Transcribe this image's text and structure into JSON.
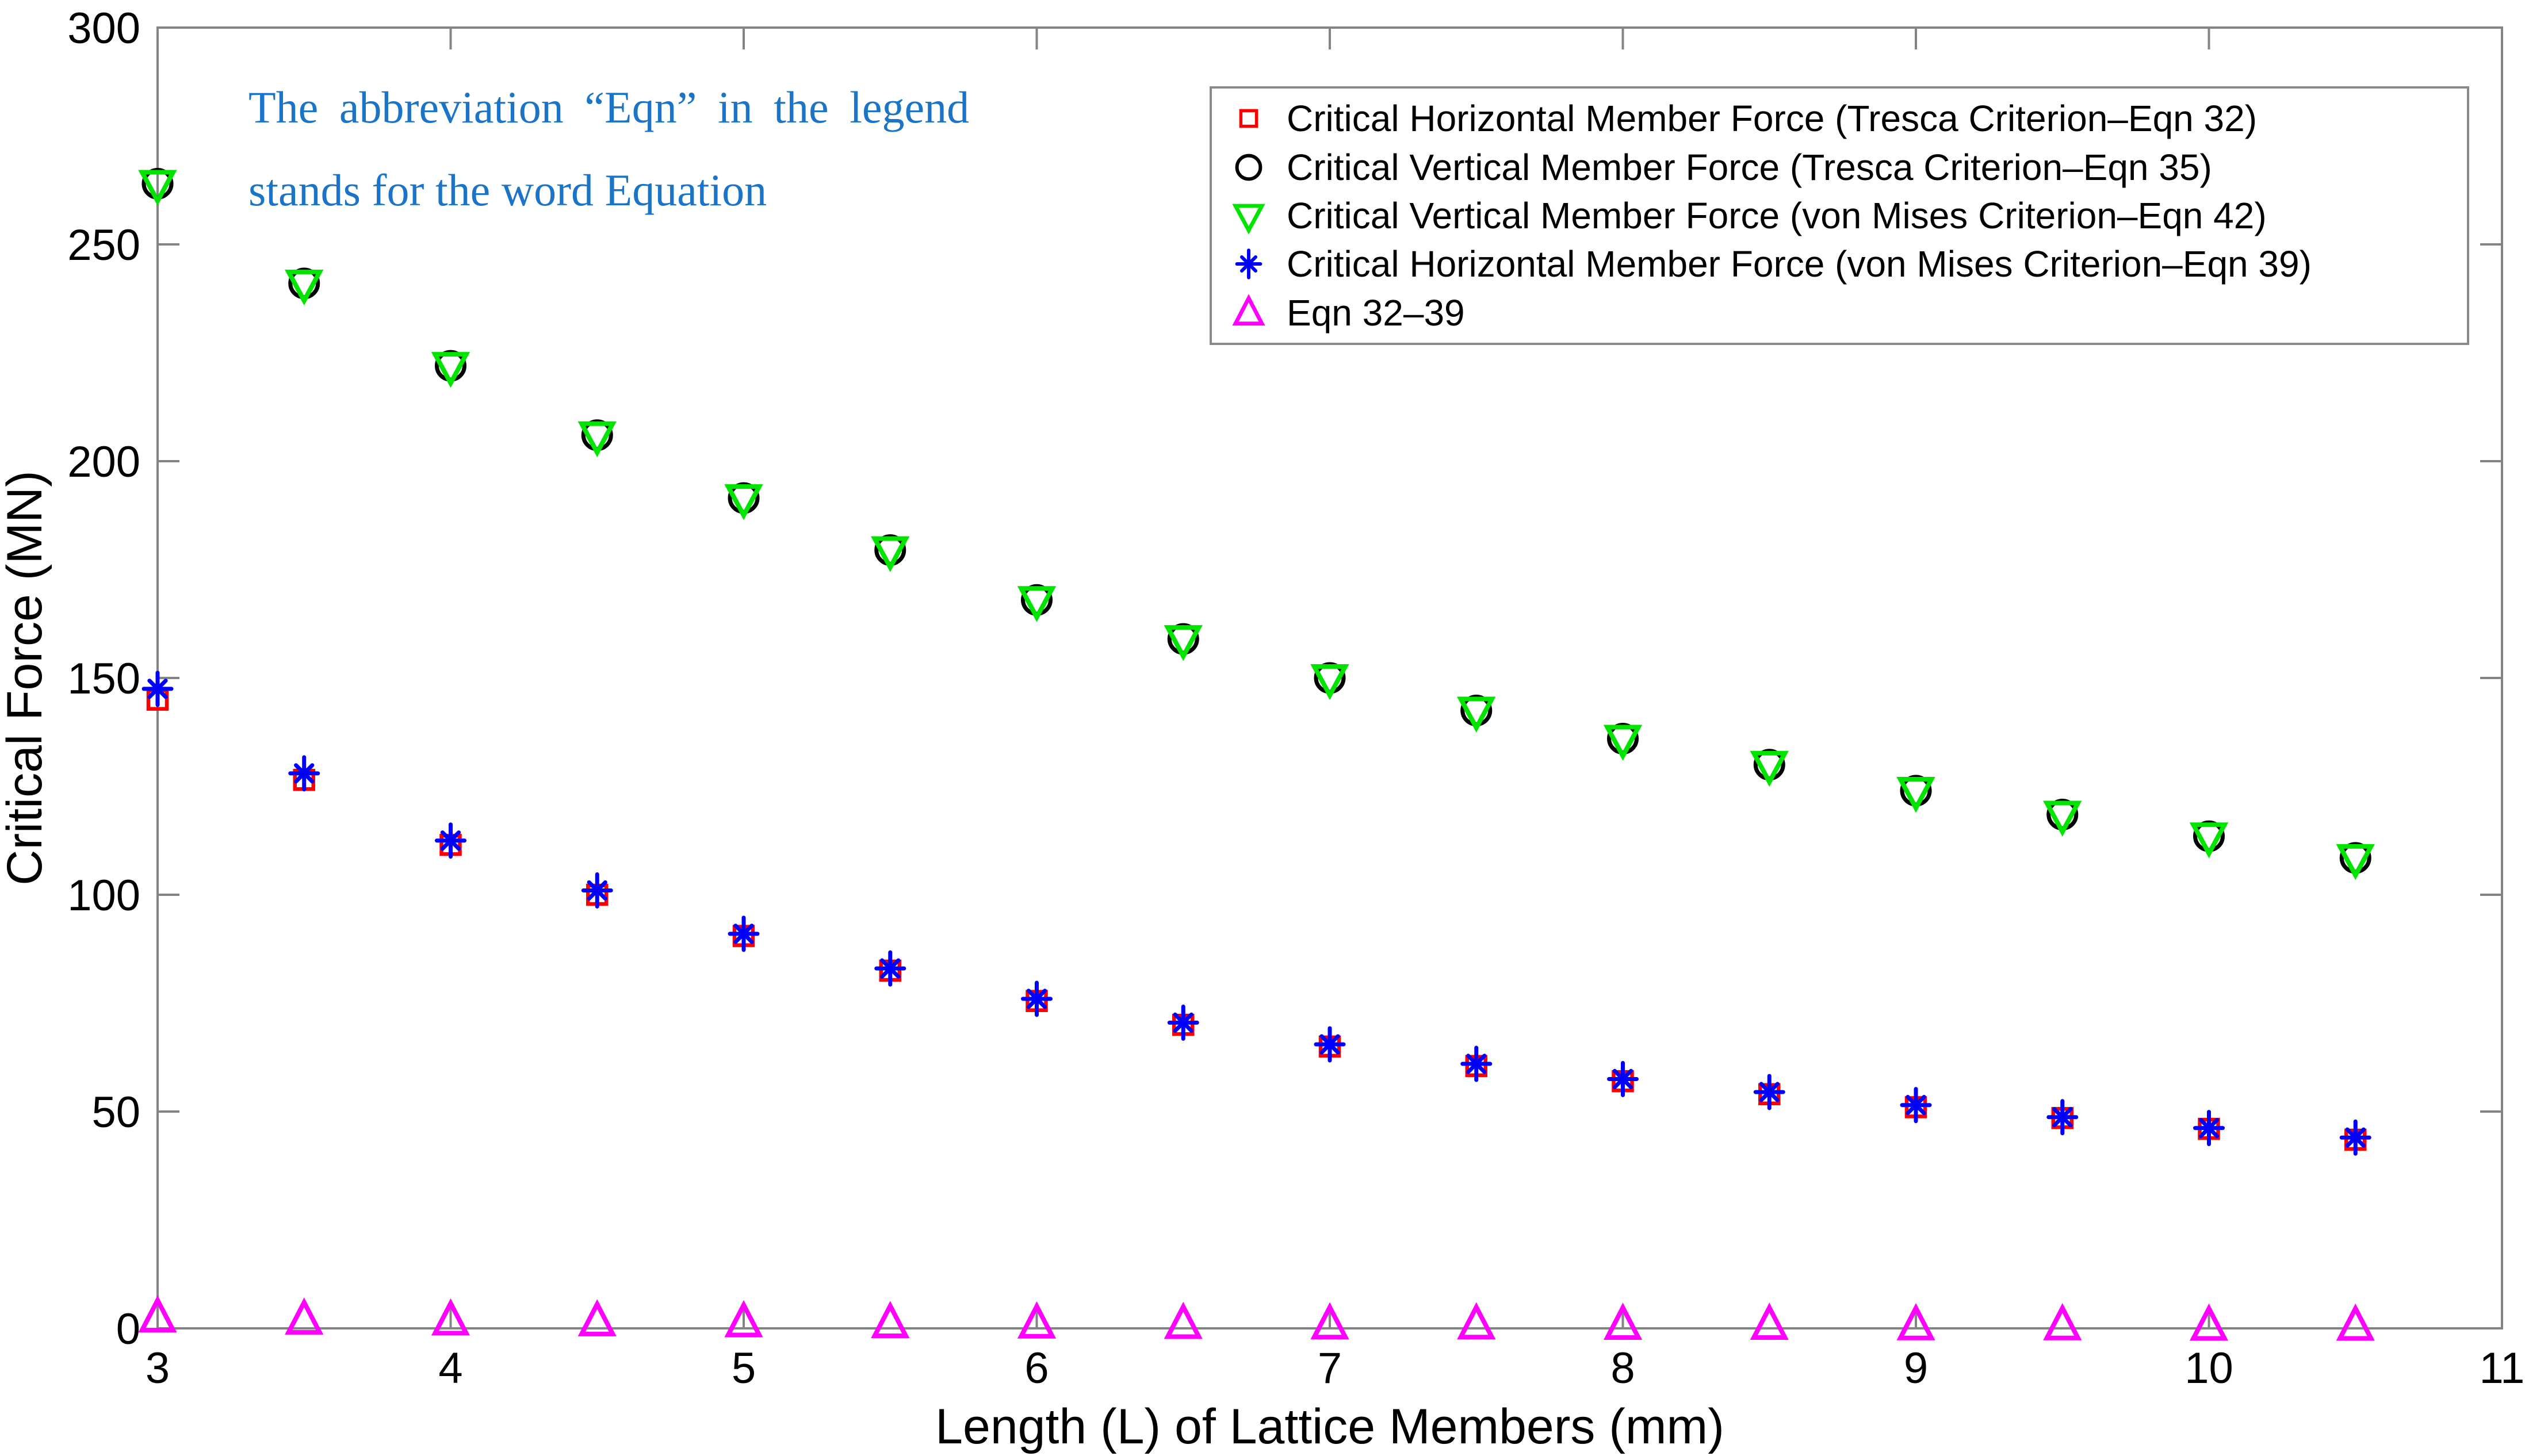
{
  "annotation": {
    "line1": "The abbreviation “Eqn” in the legend",
    "line2": "stands for the word Equation",
    "color": "#1B74C5"
  },
  "chart_data": {
    "type": "scatter",
    "title": "",
    "xlabel": "Length (L) of Lattice Members (mm)",
    "ylabel": "Critical Force (MN)",
    "xlim": [
      3,
      11
    ],
    "ylim": [
      0,
      300
    ],
    "xticks": [
      3,
      4,
      5,
      6,
      7,
      8,
      9,
      10,
      11
    ],
    "yticks": [
      0,
      50,
      100,
      150,
      200,
      250,
      300
    ],
    "grid": false,
    "legend_position": "upper right",
    "axis_color": "#848484",
    "tick_label_color": "#000000",
    "x": [
      3,
      3.5,
      4,
      4.5,
      5,
      5.5,
      6,
      6.5,
      7,
      7.5,
      8,
      8.5,
      9,
      9.5,
      10,
      10.5
    ],
    "series": [
      {
        "name": "Critical Horizontal Member Force (Tresca Criterion–Eqn 32)",
        "marker": "square",
        "color": "#FF0000",
        "values": [
          145,
          126.5,
          111.5,
          100,
          90.5,
          82.5,
          75.5,
          70,
          65,
          60.5,
          57,
          54,
          51,
          48.5,
          46,
          43.5
        ]
      },
      {
        "name": "Critical Vertical Member Force (Tresca Criterion–Eqn 35)",
        "marker": "circle",
        "color": "#000000",
        "values": [
          264,
          241,
          222,
          206,
          191.5,
          179.5,
          168,
          159,
          150,
          142.5,
          136,
          130,
          124,
          118.5,
          113.5,
          108.5
        ]
      },
      {
        "name": "Critical Vertical Member Force (von Mises Criterion–Eqn 42)",
        "marker": "triangle-down",
        "color": "#00E400",
        "values": [
          264,
          241,
          222,
          206,
          191.5,
          179.5,
          168,
          159,
          150,
          142.5,
          136,
          130,
          124,
          118.5,
          113.5,
          108.5
        ]
      },
      {
        "name": "Critical Horizontal Member Force (von Mises Criterion–Eqn 39)",
        "marker": "asterisk",
        "color": "#0000FF",
        "values": [
          147.5,
          128,
          112.5,
          101,
          91,
          83,
          76,
          70.5,
          65.5,
          61,
          57.5,
          54.5,
          51.5,
          48.7,
          46.2,
          44
        ]
      },
      {
        "name": "Eqn 32–39",
        "marker": "triangle-up",
        "color": "#FF00FF",
        "values": [
          2.5,
          2,
          1.8,
          1.6,
          1.4,
          1.2,
          1.1,
          1,
          0.9,
          0.9,
          0.8,
          0.8,
          0.7,
          0.7,
          0.6,
          0.6
        ]
      }
    ]
  }
}
